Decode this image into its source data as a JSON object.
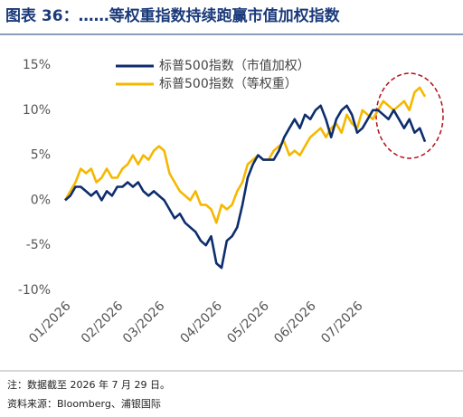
{
  "chart_data": {
    "type": "line",
    "title": "图表 36：……等权重指数持续跑赢市值加权指数",
    "notes": [
      "注：数据截至 2026 年 7 月 29 日。",
      "资料来源：Bloomberg、浦银国际"
    ],
    "categories": [
      "01/2026",
      null,
      null,
      null,
      null,
      null,
      null,
      null,
      null,
      null,
      "02/2026",
      null,
      null,
      null,
      null,
      null,
      null,
      null,
      "03/2026",
      null,
      null,
      null,
      null,
      null,
      null,
      null,
      null,
      null,
      null,
      "04/2026",
      null,
      null,
      null,
      null,
      null,
      null,
      null,
      null,
      "05/2026",
      null,
      null,
      null,
      null,
      null,
      null,
      null,
      null,
      "06/2026",
      null,
      null,
      null,
      null,
      null,
      null,
      null,
      null,
      "07/2026",
      null,
      null,
      null,
      null,
      null,
      null,
      null,
      null,
      null,
      null,
      null,
      null,
      null
    ],
    "series": [
      {
        "name": "标普500指数（市值加权）",
        "color": "#0d2d6e",
        "values": [
          0,
          0.5,
          1.5,
          1.5,
          1,
          0.5,
          1,
          0,
          1,
          0.5,
          1.5,
          1.5,
          2,
          1.5,
          2,
          1,
          0.5,
          1,
          0.5,
          0,
          -1,
          -2,
          -1.5,
          -2.5,
          -3,
          -3.5,
          -4.5,
          -5,
          -4,
          -7,
          -7.5,
          -4.5,
          -4,
          -3,
          -0.5,
          2.5,
          4,
          5,
          4.5,
          4.5,
          4.5,
          5.5,
          7,
          8,
          9,
          8,
          9.5,
          9,
          10,
          10.5,
          9,
          7,
          9,
          10,
          10.5,
          9.5,
          7.5,
          8,
          9,
          10,
          10,
          9.5,
          9,
          10,
          9,
          8,
          9,
          7.5,
          8,
          6.5
        ]
      },
      {
        "name": "标普500指数（等权重）",
        "color": "#f5b800",
        "values": [
          0,
          1,
          2,
          3.5,
          3,
          3.5,
          2,
          2.5,
          3.5,
          2.5,
          2.5,
          3.5,
          4,
          5,
          4,
          5,
          4.5,
          5.5,
          6,
          5.5,
          3,
          2,
          1,
          0.5,
          0,
          1,
          -0.5,
          -0.5,
          -1,
          -2.5,
          -0.5,
          -1,
          -0.5,
          1,
          2,
          4,
          4.5,
          5,
          4.5,
          4.5,
          5.5,
          6,
          6.5,
          5,
          5.5,
          5,
          6,
          7,
          7.5,
          8,
          7,
          8,
          8.5,
          7.5,
          9.5,
          8.5,
          8,
          10,
          9.5,
          9,
          10,
          11,
          10.5,
          10,
          10.5,
          11,
          10,
          12,
          12.5,
          11.5
        ]
      }
    ],
    "ylim": [
      -10,
      15
    ],
    "yticks": [
      {
        "value": -10,
        "label": "-10%"
      },
      {
        "value": -5,
        "label": "-5%"
      },
      {
        "value": 0,
        "label": "0%"
      },
      {
        "value": 5,
        "label": "5%"
      },
      {
        "value": 10,
        "label": "10%"
      },
      {
        "value": 15,
        "label": "15%"
      }
    ],
    "grid": false,
    "legend": "top-left"
  }
}
